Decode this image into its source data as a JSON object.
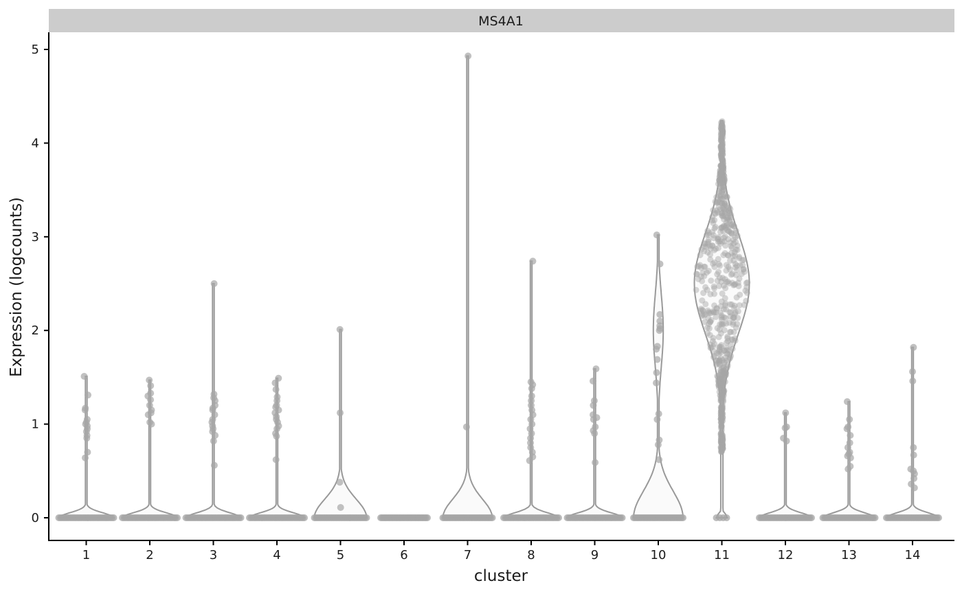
{
  "chart_data": {
    "type": "violin",
    "facet_title": "MS4A1",
    "xlabel": "cluster",
    "ylabel": "Expression (logcounts)",
    "categories": [
      "1",
      "2",
      "3",
      "4",
      "5",
      "6",
      "7",
      "8",
      "9",
      "10",
      "11",
      "12",
      "13",
      "14"
    ],
    "yticks": [
      0,
      1,
      2,
      3,
      4,
      5
    ],
    "ylim": [
      -0.25,
      5.2
    ],
    "grid": false,
    "legend": "none",
    "colors": {
      "violin_stroke": "#999999",
      "violin_fill": "#fafafa",
      "points": "#a6a6a6",
      "strip": "#cccccc"
    },
    "series": [
      {
        "cluster": "1",
        "max": 1.51,
        "mode_width": 1.0,
        "points": [
          1.51,
          1.31,
          1.17,
          1.15,
          1.05,
          1.02,
          1.0,
          0.98,
          0.95,
          0.92,
          0.88,
          0.85,
          0.7,
          0.64
        ]
      },
      {
        "cluster": "2",
        "max": 1.47,
        "mode_width": 1.0,
        "points": [
          1.47,
          1.41,
          1.33,
          1.3,
          1.26,
          1.2,
          1.15,
          1.12,
          1.1,
          1.02,
          1.0
        ]
      },
      {
        "cluster": "3",
        "max": 2.5,
        "mode_width": 1.0,
        "points": [
          2.5,
          1.32,
          1.28,
          1.25,
          1.2,
          1.17,
          1.15,
          1.1,
          1.05,
          1.02,
          0.98,
          0.95,
          0.92,
          0.88,
          0.82,
          0.56
        ]
      },
      {
        "cluster": "4",
        "max": 1.49,
        "mode_width": 1.0,
        "points": [
          1.49,
          1.44,
          1.37,
          1.29,
          1.25,
          1.2,
          1.18,
          1.15,
          1.12,
          1.08,
          1.05,
          1.02,
          0.98,
          0.95,
          0.9,
          0.87,
          0.62
        ]
      },
      {
        "cluster": "5",
        "max": 2.01,
        "mode_width": 0.95,
        "points": [
          2.01,
          1.12,
          0.38,
          0.11
        ]
      },
      {
        "cluster": "6",
        "max": 0.0,
        "mode_width": 0.85,
        "points": []
      },
      {
        "cluster": "7",
        "max": 4.93,
        "mode_width": 0.9,
        "points": [
          4.93,
          0.97
        ]
      },
      {
        "cluster": "8",
        "max": 2.74,
        "mode_width": 1.0,
        "points": [
          2.74,
          1.45,
          1.42,
          1.38,
          1.3,
          1.25,
          1.2,
          1.15,
          1.1,
          1.05,
          1.0,
          0.95,
          0.9,
          0.85,
          0.8,
          0.75,
          0.7,
          0.65,
          0.61
        ]
      },
      {
        "cluster": "9",
        "max": 1.59,
        "mode_width": 1.0,
        "points": [
          1.59,
          1.46,
          1.25,
          1.2,
          1.1,
          1.07,
          1.05,
          0.97,
          0.93,
          0.9,
          0.59
        ]
      },
      {
        "cluster": "10",
        "max": 3.02,
        "mode_width": 0.9,
        "points": [
          3.02,
          2.71,
          2.17,
          2.1,
          2.05,
          2.02,
          2.0,
          1.83,
          1.8,
          1.69,
          1.55,
          1.44,
          1.11,
          1.05,
          0.83,
          0.78,
          0.62
        ]
      },
      {
        "cluster": "11",
        "max": 4.24,
        "mode_width": 1.0,
        "points": []
      },
      {
        "cluster": "12",
        "max": 1.12,
        "mode_width": 0.95,
        "points": [
          1.12,
          0.97,
          0.96,
          0.85,
          0.82
        ]
      },
      {
        "cluster": "13",
        "max": 1.24,
        "mode_width": 0.95,
        "points": [
          1.24,
          1.05,
          0.97,
          0.95,
          0.88,
          0.8,
          0.75,
          0.7,
          0.68,
          0.66,
          0.64,
          0.55,
          0.52
        ]
      },
      {
        "cluster": "14",
        "max": 1.82,
        "mode_width": 0.95,
        "points": [
          1.82,
          1.56,
          1.46,
          0.75,
          0.67,
          0.52,
          0.5,
          0.47,
          0.42,
          0.36,
          0.32
        ]
      }
    ]
  }
}
